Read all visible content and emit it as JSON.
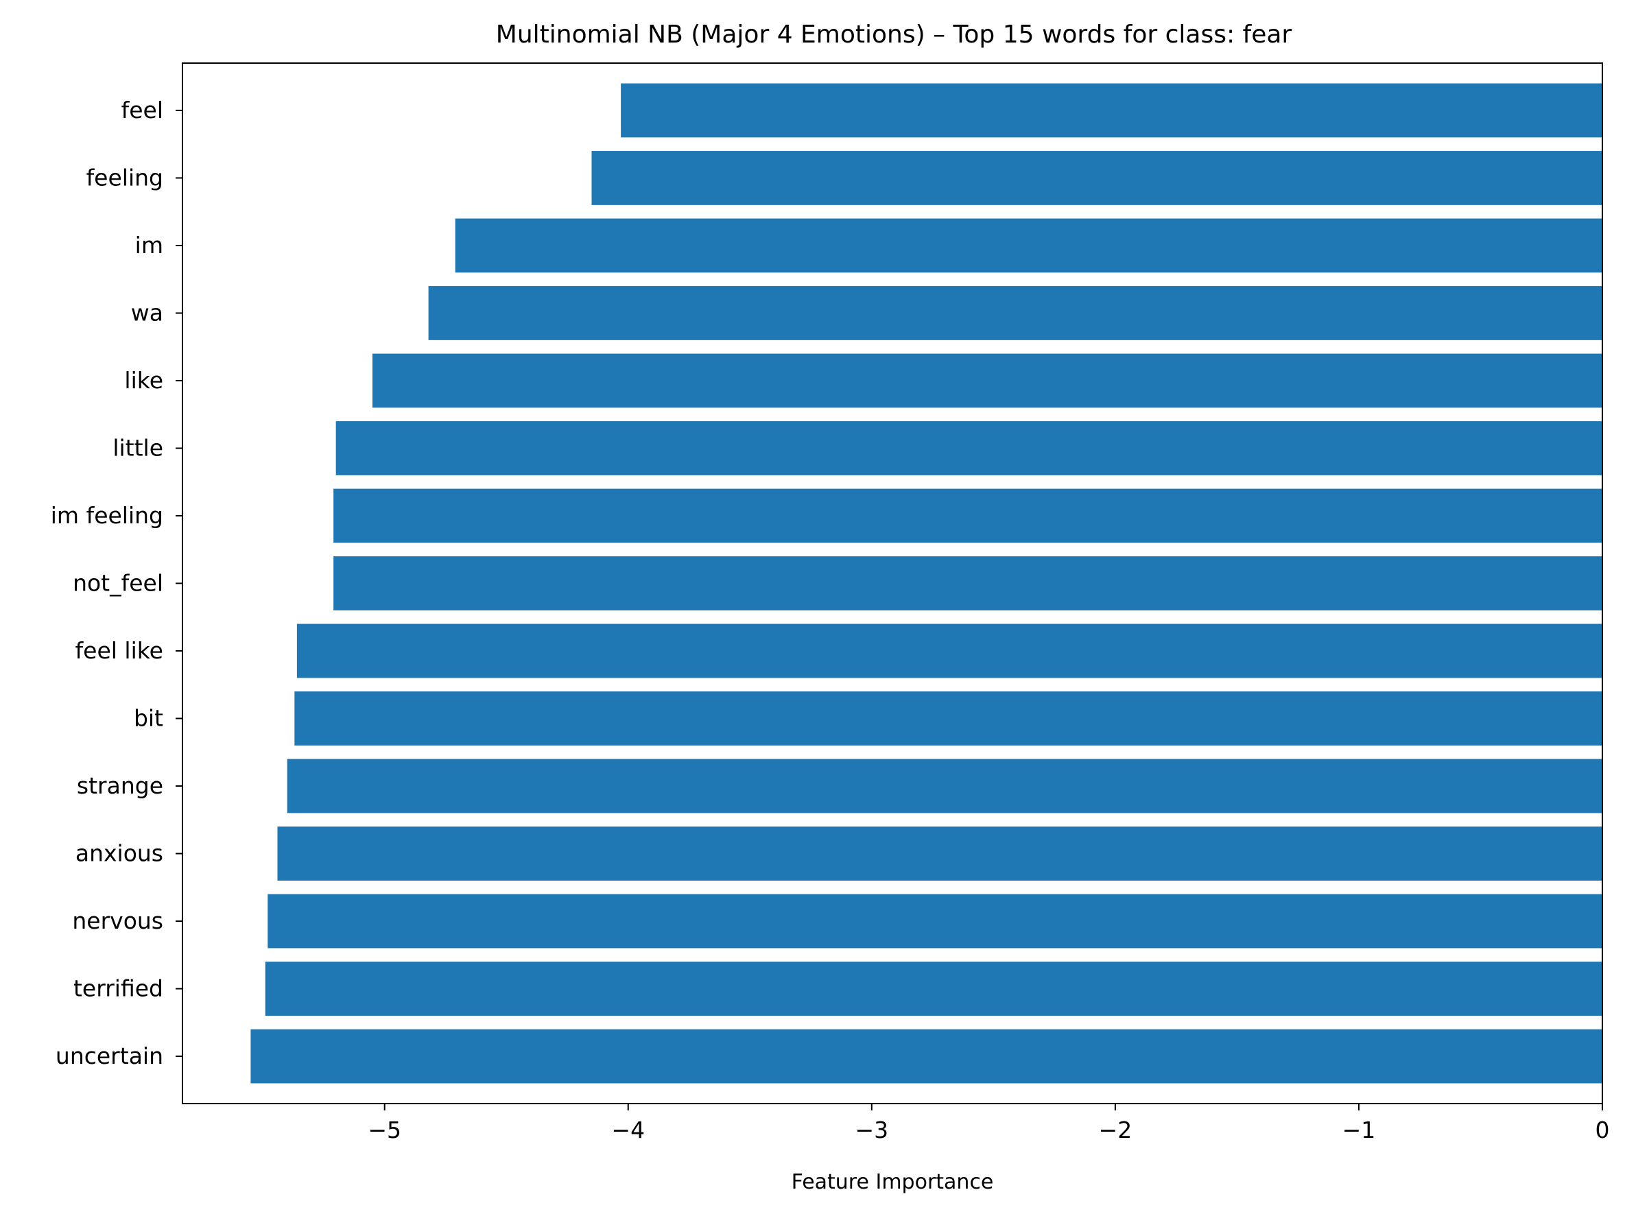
{
  "chart_data": {
    "type": "bar",
    "orientation": "horizontal",
    "title": "Multinomial NB (Major 4 Emotions) – Top 15 words for class: fear",
    "xlabel": "Feature Importance",
    "ylabel": "",
    "categories": [
      "feel",
      "feeling",
      "im",
      "wa",
      "like",
      "little",
      "im feeling",
      "not_feel",
      "feel like",
      "bit",
      "strange",
      "anxious",
      "nervous",
      "terrified",
      "uncertain"
    ],
    "values": [
      -4.03,
      -4.15,
      -4.71,
      -4.82,
      -5.05,
      -5.2,
      -5.21,
      -5.21,
      -5.36,
      -5.37,
      -5.4,
      -5.44,
      -5.48,
      -5.49,
      -5.55
    ],
    "xlim": [
      -5.83,
      0
    ],
    "xticks": [
      -5,
      -4,
      -3,
      -2,
      -1,
      0
    ],
    "xtick_labels": [
      "−5",
      "−4",
      "−3",
      "−2",
      "−1",
      "0"
    ],
    "grid": false,
    "bar_color": "#1f77b4"
  }
}
